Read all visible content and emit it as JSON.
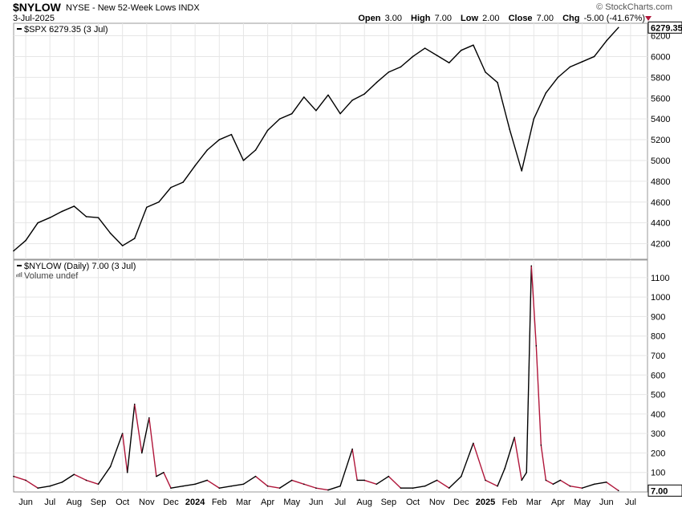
{
  "header": {
    "symbol": "$NYLOW",
    "subtitle": "NYSE - New 52-Week Lows  INDX",
    "date": "3-Jul-2025",
    "brand": "© StockCharts.com",
    "open_label": "Open",
    "open": "3.00",
    "high_label": "High",
    "high": "7.00",
    "low_label": "Low",
    "low": "2.00",
    "close_label": "Close",
    "close": "7.00",
    "chg_label": "Chg",
    "chg": "-5.00 (-41.67%)"
  },
  "colors": {
    "up": "#000000",
    "down": "#b0163a",
    "grid": "#e6e6e6",
    "axis": "#999999"
  },
  "chart_data": [
    {
      "type": "line",
      "legend": "$SPX 6279.35 (3 Jul)",
      "last_label": "6279.35",
      "ylim": [
        4050,
        6320
      ],
      "yticks": [
        4200,
        4400,
        4600,
        4800,
        5000,
        5200,
        5400,
        5600,
        5800,
        6000,
        6200
      ],
      "x_range": [
        0,
        25
      ],
      "x": [
        0,
        0.5,
        1,
        1.5,
        2,
        2.5,
        3,
        3.5,
        4,
        4.5,
        5,
        5.5,
        6,
        6.5,
        7,
        7.5,
        8,
        8.5,
        9,
        9.5,
        10,
        10.5,
        11,
        11.5,
        12,
        12.5,
        13,
        13.5,
        14,
        14.5,
        15,
        15.5,
        16,
        16.5,
        17,
        17.5,
        18,
        18.5,
        19,
        19.5,
        20,
        20.5,
        21,
        21.5,
        22,
        22.5,
        23,
        23.5,
        24,
        24.5,
        25
      ],
      "values": [
        4130,
        4230,
        4400,
        4450,
        4510,
        4560,
        4460,
        4450,
        4300,
        4180,
        4250,
        4550,
        4600,
        4740,
        4790,
        4950,
        5100,
        5200,
        5250,
        5000,
        5100,
        5290,
        5400,
        5450,
        5610,
        5480,
        5630,
        5450,
        5580,
        5640,
        5750,
        5850,
        5900,
        6000,
        6080,
        6010,
        5940,
        6060,
        6110,
        5850,
        5750,
        5300,
        4900,
        5400,
        5650,
        5800,
        5900,
        5950,
        6000,
        6150,
        6279
      ]
    },
    {
      "type": "line",
      "legend": "$NYLOW (Daily) 7.00 (3 Jul)",
      "volume_legend": "Volume undef",
      "last_label": "7.00",
      "ylim": [
        0,
        1190
      ],
      "yticks": [
        100,
        200,
        300,
        400,
        500,
        600,
        700,
        800,
        900,
        1000,
        1100
      ],
      "x_range": [
        0,
        25
      ],
      "x": [
        0,
        0.5,
        1,
        1.5,
        2,
        2.5,
        3,
        3.5,
        4,
        4.5,
        4.7,
        5,
        5.3,
        5.6,
        5.9,
        6.2,
        6.5,
        7,
        7.5,
        8,
        8.5,
        9,
        9.5,
        10,
        10.5,
        11,
        11.5,
        12,
        12.5,
        13,
        13.5,
        14,
        14.2,
        14.5,
        15,
        15.5,
        16,
        16.5,
        17,
        17.5,
        18,
        18.5,
        19,
        19.5,
        20,
        20.3,
        20.7,
        21,
        21.2,
        21.4,
        21.6,
        21.8,
        22,
        22.3,
        22.6,
        23,
        23.5,
        24,
        24.5,
        25
      ],
      "values": [
        80,
        60,
        20,
        30,
        50,
        90,
        60,
        40,
        130,
        300,
        100,
        450,
        200,
        380,
        80,
        100,
        20,
        30,
        40,
        60,
        20,
        30,
        40,
        80,
        30,
        20,
        60,
        40,
        20,
        10,
        30,
        220,
        60,
        60,
        40,
        80,
        20,
        20,
        30,
        60,
        20,
        80,
        250,
        60,
        30,
        120,
        280,
        60,
        100,
        1160,
        750,
        240,
        60,
        40,
        60,
        30,
        20,
        40,
        50,
        7
      ]
    }
  ],
  "x_axis": {
    "labels": [
      "Jun",
      "Jul",
      "Aug",
      "Sep",
      "Oct",
      "Nov",
      "Dec",
      "2024",
      "Feb",
      "Mar",
      "Apr",
      "May",
      "Jun",
      "Jul",
      "Aug",
      "Sep",
      "Oct",
      "Nov",
      "Dec",
      "2025",
      "Feb",
      "Mar",
      "Apr",
      "May",
      "Jun",
      "Jul"
    ],
    "positions": [
      1.0,
      2.0,
      3.0,
      4.0,
      5.0,
      6.0,
      7.0,
      8.0,
      9.0,
      10.0,
      11.0,
      12.0,
      13.0,
      14.0,
      15.0,
      16.0,
      17.0,
      18.0,
      19.0,
      20.0,
      21.0,
      22.0,
      23.0,
      24.0,
      25.0,
      26.0
    ],
    "bold": [
      "2024",
      "2025"
    ]
  }
}
